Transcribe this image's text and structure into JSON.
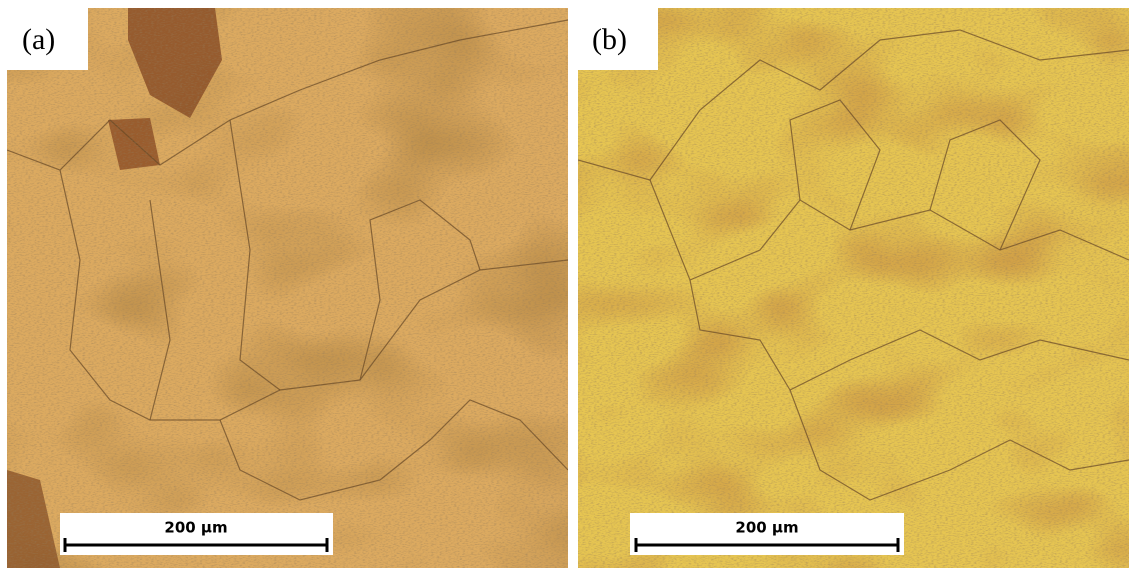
{
  "panels": [
    {
      "label": "(a)",
      "scale_bar": "200 µm"
    },
    {
      "label": "(b)",
      "scale_bar": "200 µm"
    }
  ]
}
